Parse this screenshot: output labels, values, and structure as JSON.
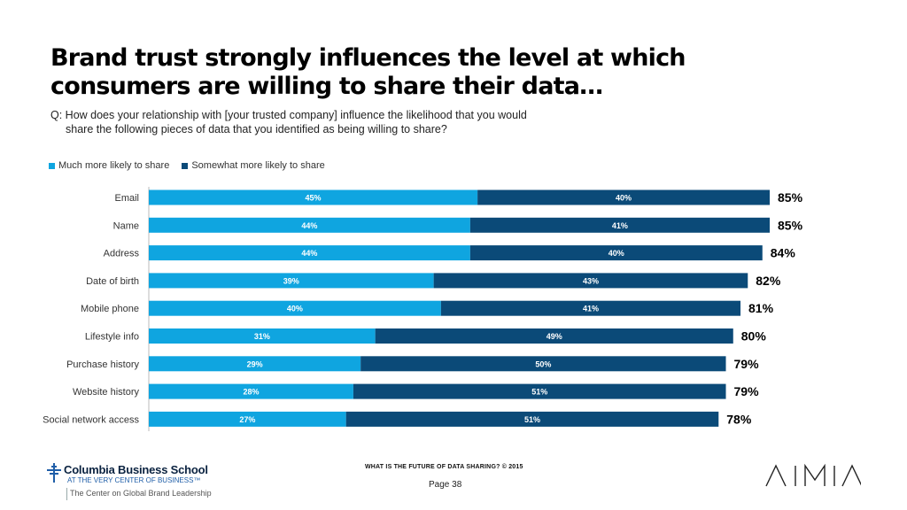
{
  "header": {
    "title_line1": "Brand trust strongly influences the level at which",
    "title_line2": "consumers are willing to share their data…",
    "question_line1": "Q: How does your relationship  with [your trusted company] influence the likelihood that you would",
    "question_line2": "share the following pieces of data that you identified as being willing to share?"
  },
  "colors": {
    "much": "#0fa5e0",
    "somewhat": "#0b4a78"
  },
  "chart_data": {
    "type": "bar",
    "orientation": "horizontal",
    "stacked": true,
    "categories": [
      "Email",
      "Name",
      "Address",
      "Date of birth",
      "Mobile phone",
      "Lifestyle info",
      "Purchase history",
      "Website history",
      "Social network access"
    ],
    "series": [
      {
        "name": "Much more likely to share",
        "values": [
          45,
          44,
          44,
          39,
          40,
          31,
          29,
          28,
          27
        ],
        "labels": [
          "45%",
          "44%",
          "44%",
          "39%",
          "40%",
          "31%",
          "29%",
          "28%",
          "27%"
        ]
      },
      {
        "name": "Somewhat more likely to share",
        "values": [
          40,
          41,
          40,
          43,
          41,
          49,
          50,
          51,
          51
        ],
        "labels": [
          "40%",
          "41%",
          "40%",
          "43%",
          "41%",
          "49%",
          "50%",
          "51%",
          "51%"
        ]
      }
    ],
    "totals": [
      "85%",
      "85%",
      "84%",
      "82%",
      "81%",
      "80%",
      "79%",
      "79%",
      "78%"
    ],
    "xlim": [
      0,
      85
    ],
    "legend_position": "top-left"
  },
  "footer": {
    "survey_title": "WHAT IS THE FUTURE OF DATA SHARING?  © 2015",
    "page": "Page 38",
    "school_name": "Columbia Business School",
    "school_tagline": "AT THE VERY CENTER OF BUSINESS™",
    "center_name": "The Center on Global Brand Leadership",
    "brand_logo": "AIMIA"
  }
}
